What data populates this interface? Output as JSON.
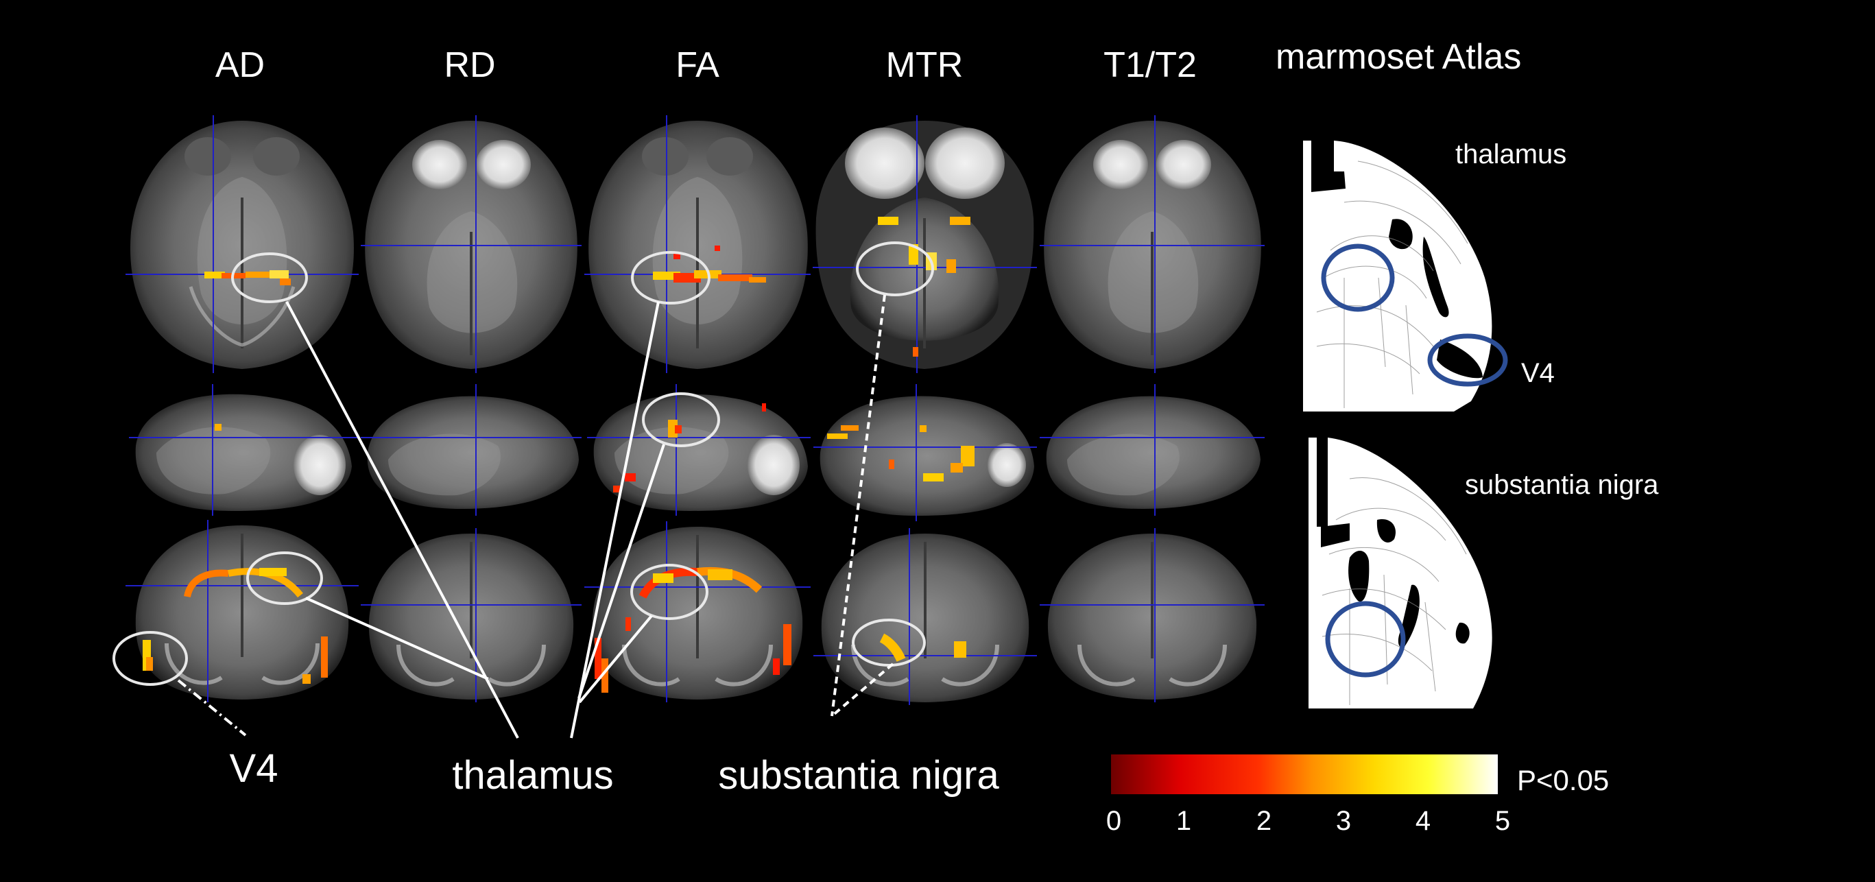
{
  "columns": [
    "AD",
    "RD",
    "FA",
    "MTR",
    "T1/T2"
  ],
  "atlas_title": "marmoset Atlas",
  "atlas_labels": {
    "top_region": "thalamus",
    "top_region2": "V4",
    "bottom_region": "substantia nigra"
  },
  "bottom_labels": {
    "v4": "V4",
    "thalamus": "thalamus",
    "substantia_nigra": "substantia nigra"
  },
  "colorbar": {
    "ticks": [
      "0",
      "1",
      "2",
      "3",
      "4",
      "5"
    ],
    "threshold_label": "P<0.05",
    "colors": [
      "#7a0000",
      "#e00000",
      "#ff2a00",
      "#ff8c00",
      "#ffd000",
      "#ffff20",
      "#ffffff"
    ]
  },
  "colors": {
    "crosshair": "#2020c8",
    "circle_white": "#e8e8e8",
    "circle_blue": "#2c4e96",
    "background": "#000000"
  }
}
